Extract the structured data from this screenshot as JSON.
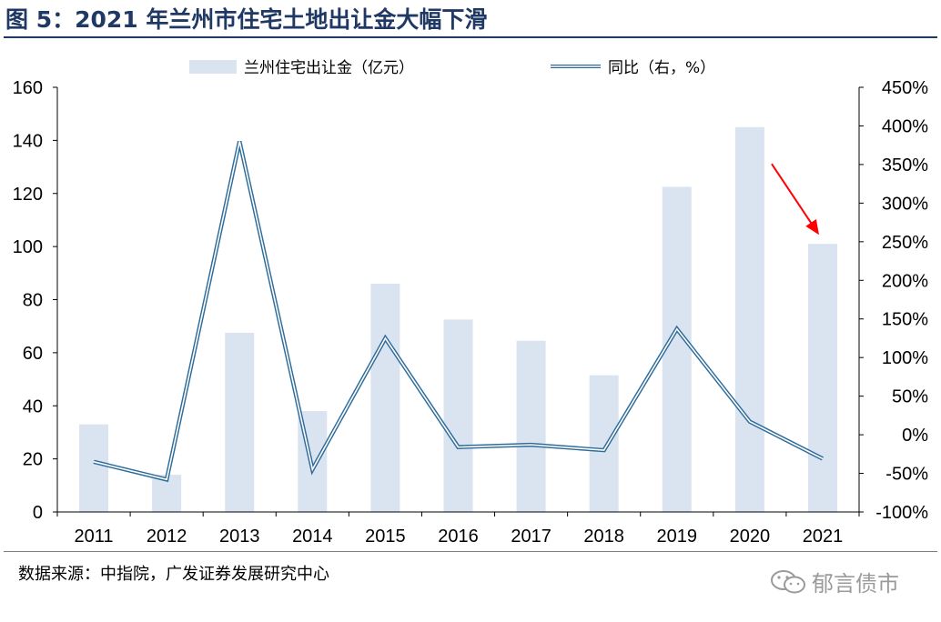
{
  "figure": {
    "title": "图 5：2021 年兰州市住宅土地出让金大幅下滑",
    "source": "数据来源：中指院，广发证券发展研究中心",
    "watermark": "郁言债市",
    "watermark_icon": "wechat-icon"
  },
  "chart_data": {
    "type": "bar",
    "categories": [
      "2011",
      "2012",
      "2013",
      "2014",
      "2015",
      "2016",
      "2017",
      "2018",
      "2019",
      "2020",
      "2021"
    ],
    "series": [
      {
        "name": "兰州住宅出让金（亿元）",
        "type": "bar",
        "axis": "left",
        "color": "#dae3f0",
        "values": [
          33,
          14,
          67.5,
          38,
          86,
          72.5,
          64.5,
          51.5,
          122.5,
          145,
          101
        ]
      },
      {
        "name": "同比（右，%）",
        "type": "line",
        "axis": "right",
        "color": "#2e6c9a",
        "values": [
          -35,
          -58,
          380,
          -45,
          125,
          -16,
          -13,
          -20,
          137,
          17,
          -31
        ]
      }
    ],
    "yaxis_left": {
      "min": 0,
      "max": 160,
      "step": 20,
      "ticks": [
        "0",
        "20",
        "40",
        "60",
        "80",
        "100",
        "120",
        "140",
        "160"
      ]
    },
    "yaxis_right": {
      "min": -100,
      "max": 450,
      "step": 50,
      "ticks": [
        "-100%",
        "-50%",
        "0%",
        "50%",
        "100%",
        "150%",
        "200%",
        "250%",
        "300%",
        "350%",
        "400%",
        "450%"
      ]
    },
    "annotation": {
      "type": "arrow",
      "color": "#ff0000",
      "points_to": "2021"
    },
    "grid": false,
    "legend_position": "top-center"
  }
}
